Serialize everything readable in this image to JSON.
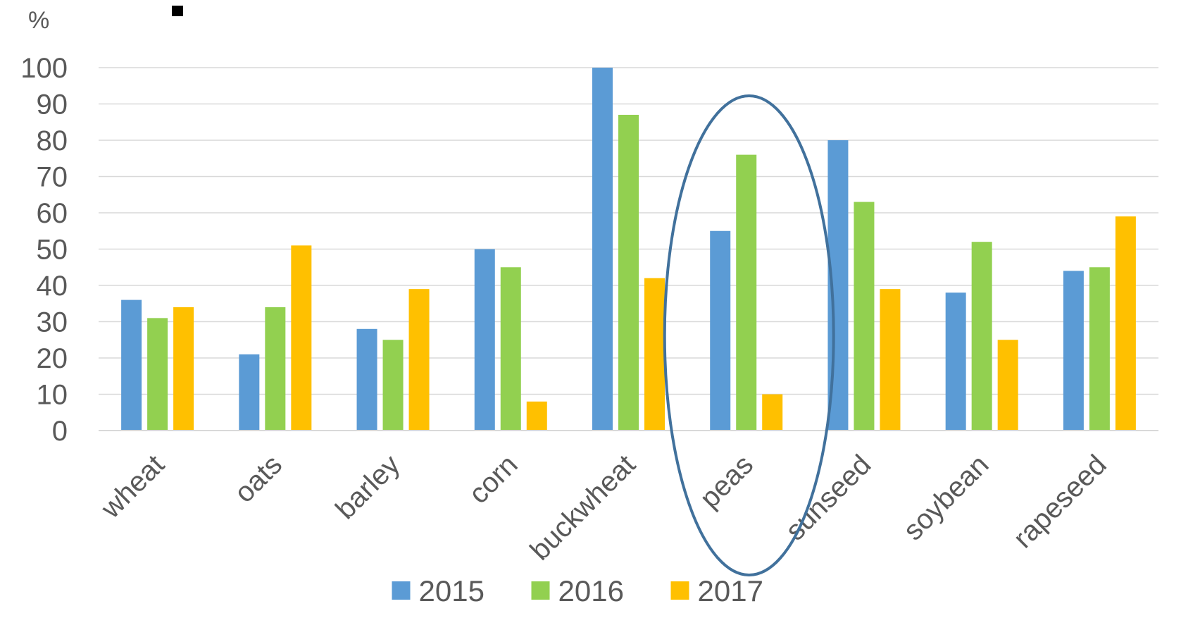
{
  "chart_data": {
    "type": "bar",
    "ylabel": "%",
    "ylim": [
      0,
      100
    ],
    "yticks": [
      "0",
      "10",
      "20",
      "30",
      "40",
      "50",
      "60",
      "70",
      "80",
      "90",
      "100"
    ],
    "grid": true,
    "legend_position": "bottom",
    "categories": [
      "wheat",
      "oats",
      "barley",
      "corn",
      "buckwheat",
      "peas",
      "sunseed",
      "soybean",
      "rapeseed"
    ],
    "series": [
      {
        "name": "2015",
        "color": "#5B9BD5",
        "values": [
          36,
          21,
          28,
          50,
          100,
          55,
          80,
          38,
          44
        ]
      },
      {
        "name": "2016",
        "color": "#92D050",
        "values": [
          31,
          34,
          25,
          45,
          87,
          76,
          63,
          52,
          45
        ]
      },
      {
        "name": "2017",
        "color": "#FFC000",
        "values": [
          34,
          51,
          39,
          8,
          42,
          10,
          39,
          25,
          59
        ]
      }
    ],
    "annotations": [
      {
        "type": "ellipse",
        "target_category": "peas",
        "color": "#41719C"
      }
    ]
  }
}
